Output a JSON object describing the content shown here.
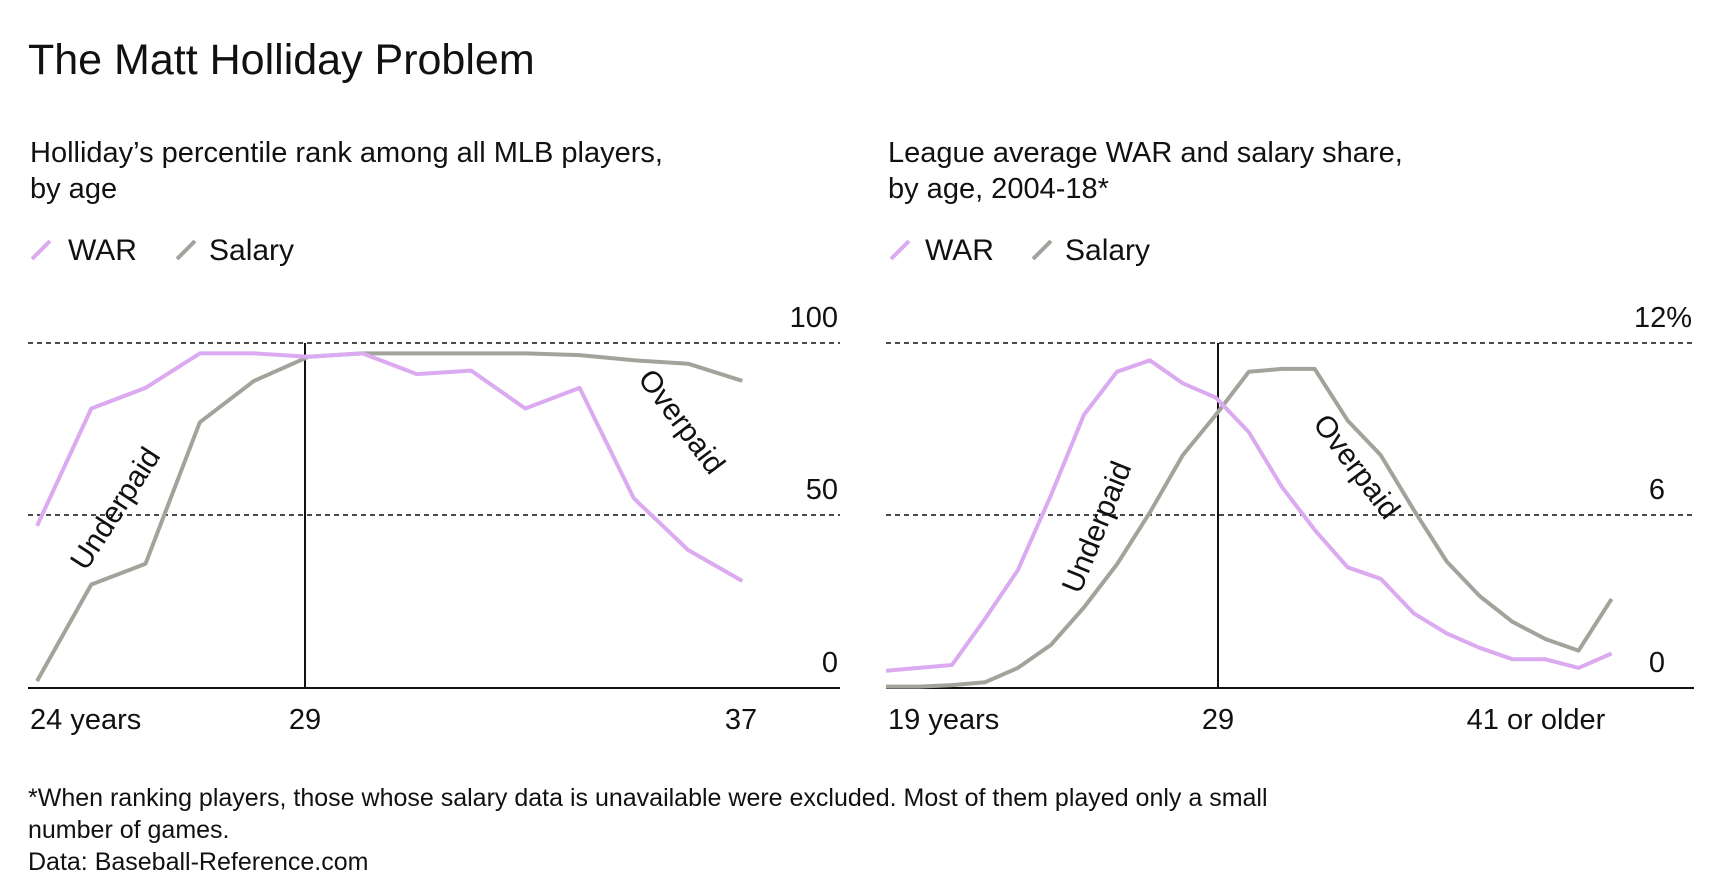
{
  "title": "The Matt Holliday Problem",
  "colors": {
    "war": "#dcaaf0",
    "salary": "#a3a39c",
    "axis": "#111111"
  },
  "chart_data": [
    {
      "type": "line",
      "subtitle_line1": "Holliday’s percentile rank among all MLB players,",
      "subtitle_line2": "by age",
      "legend": [
        "WAR",
        "Salary"
      ],
      "x": [
        24,
        25,
        26,
        27,
        28,
        29,
        30,
        31,
        32,
        33,
        34,
        35,
        36,
        37
      ],
      "series": [
        {
          "name": "WAR",
          "values": [
            47,
            81,
            87,
            97,
            97,
            96,
            97,
            91,
            92,
            81,
            87,
            55,
            40,
            31
          ]
        },
        {
          "name": "Salary",
          "values": [
            2,
            30,
            36,
            77,
            89,
            96,
            97,
            97,
            97,
            97,
            96.5,
            95,
            94,
            89
          ]
        }
      ],
      "xlim": [
        24,
        38.8
      ],
      "ylim": [
        0,
        100
      ],
      "yticks": [
        {
          "value": 100,
          "label": "100"
        },
        {
          "value": 50,
          "label": "50"
        },
        {
          "value": 0,
          "label": "0"
        }
      ],
      "xticks": [
        {
          "value": 24,
          "label": "24 years"
        },
        {
          "value": 29,
          "label": "29"
        },
        {
          "value": 37,
          "label": "37"
        }
      ],
      "reference_x": 29,
      "annotations": {
        "underpaid": "Underpaid",
        "overpaid": "Overpaid"
      }
    },
    {
      "type": "line",
      "subtitle_line1": "League average WAR and salary share,",
      "subtitle_line2": "by age, 2004-18*",
      "legend": [
        "WAR",
        "Salary"
      ],
      "x": [
        19,
        20,
        21,
        22,
        23,
        24,
        25,
        26,
        27,
        28,
        29,
        30,
        31,
        32,
        33,
        34,
        35,
        36,
        37,
        38,
        39,
        40,
        41
      ],
      "series": [
        {
          "name": "WAR",
          "values": [
            0.6,
            0.7,
            0.8,
            2.4,
            4.1,
            6.7,
            9.5,
            11.0,
            11.4,
            10.6,
            10.1,
            8.9,
            7.0,
            5.5,
            4.2,
            3.8,
            2.6,
            1.9,
            1.4,
            1.0,
            1.0,
            0.7,
            1.2
          ]
        },
        {
          "name": "Salary",
          "values": [
            0.05,
            0.05,
            0.1,
            0.2,
            0.7,
            1.5,
            2.8,
            4.3,
            6.1,
            8.1,
            9.5,
            11.0,
            11.1,
            11.1,
            9.3,
            8.1,
            6.2,
            4.4,
            3.2,
            2.3,
            1.7,
            1.3,
            3.1
          ]
        }
      ],
      "xlim": [
        19,
        43.5
      ],
      "ylim": [
        0,
        12
      ],
      "yticks": [
        {
          "value": 12,
          "label": "12%"
        },
        {
          "value": 6,
          "label": "6"
        },
        {
          "value": 0,
          "label": "0"
        }
      ],
      "xticks": [
        {
          "value": 19,
          "label": "19 years"
        },
        {
          "value": 29,
          "label": "29"
        },
        {
          "value": 41,
          "label": "41 or older"
        }
      ],
      "reference_x": 29,
      "annotations": {
        "underpaid": "Underpaid",
        "overpaid": "Overpaid"
      }
    }
  ],
  "footnote_line1": "*When ranking players, those whose salary data is unavailable were excluded. Most of them played only a small",
  "footnote_line2": "number of games.",
  "source": "Data: Baseball-Reference.com"
}
